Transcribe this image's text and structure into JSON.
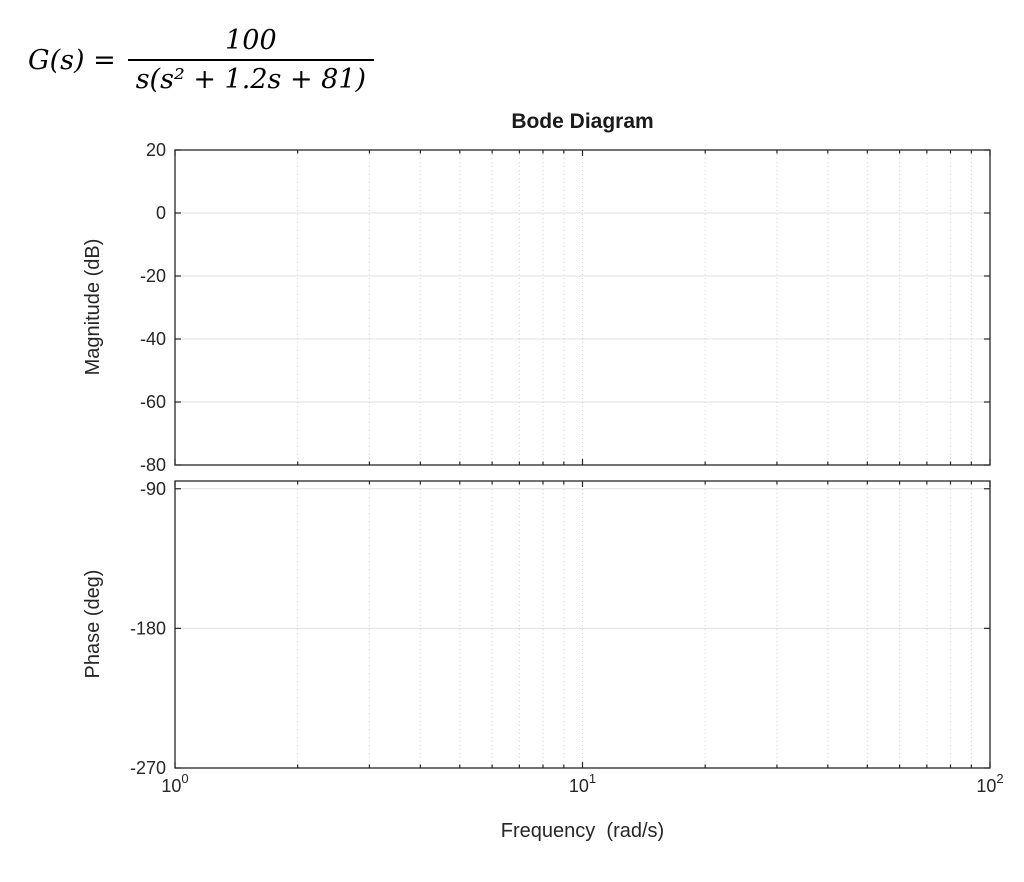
{
  "formula": {
    "prefix": "G(s) =",
    "numerator": "100",
    "denominator": "s(s² + 1.2s + 81)"
  },
  "chart_data": {
    "type": "line",
    "title": "Bode Diagram",
    "xlabel": "Frequency  (rad/s)",
    "x_scale": "log",
    "x_lim": [
      1,
      100
    ],
    "x_major_ticks": [
      {
        "value": 1,
        "base": "10",
        "exp": "0"
      },
      {
        "value": 10,
        "base": "10",
        "exp": "1"
      },
      {
        "value": 100,
        "base": "10",
        "exp": "2"
      }
    ],
    "grid": true,
    "subplots": [
      {
        "name": "magnitude",
        "ylabel": "Magnitude (dB)",
        "y_lim": [
          -80,
          20
        ],
        "y_ticks": [
          20,
          0,
          -20,
          -40,
          -60,
          -80
        ],
        "series": []
      },
      {
        "name": "phase",
        "ylabel": "Phase (deg)",
        "y_lim": [
          -270,
          -85
        ],
        "y_ticks": [
          -90,
          -180,
          -270
        ],
        "series": []
      }
    ]
  }
}
